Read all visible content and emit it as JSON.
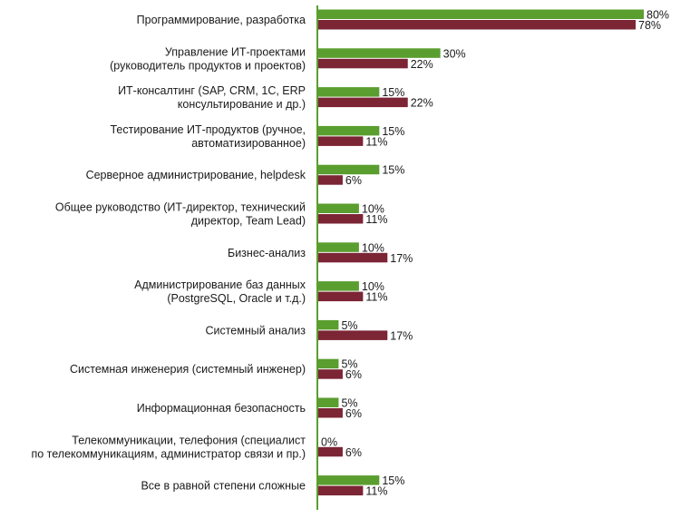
{
  "chart_data": {
    "type": "bar",
    "orientation": "horizontal",
    "title": "",
    "xlabel": "",
    "ylabel": "",
    "xlim": [
      0,
      80
    ],
    "grid": false,
    "legend": "none",
    "categories": [
      [
        "Программирование, разработка"
      ],
      [
        "Управление ИТ-проектами",
        "(руководитель продуктов и проектов)"
      ],
      [
        "ИТ-консалтинг (SAP, CRM, 1С, ERP",
        "консультирование и др.)"
      ],
      [
        "Тестирование ИТ-продуктов (ручное,",
        "автоматизированное)"
      ],
      [
        "Серверное администрирование, helpdesk"
      ],
      [
        "Общее руководство (ИТ-директор, технический",
        "директор, Team Lead)"
      ],
      [
        "Бизнес-анализ"
      ],
      [
        "Администрирование баз данных",
        "(PostgreSQL, Oracle и т.д.)"
      ],
      [
        "Системный анализ"
      ],
      [
        "Системная инженерия (системный инженер)"
      ],
      [
        "Информационная безопасность"
      ],
      [
        "Телекоммуникации, телефония (специалист",
        "по телекоммуникациям, администратор связи и пр.)"
      ],
      [
        "Все в равной степени сложные"
      ]
    ],
    "series": [
      {
        "color": "#5a9e2f",
        "values": [
          80,
          30,
          15,
          15,
          15,
          10,
          10,
          10,
          5,
          5,
          5,
          0,
          15
        ],
        "labels": [
          "80%",
          "30%",
          "15%",
          "15%",
          "15%",
          "10%",
          "10%",
          "10%",
          "5%",
          "5%",
          "5%",
          "0%",
          "15%"
        ]
      },
      {
        "color": "#7b2535",
        "values": [
          78,
          22,
          22,
          11,
          6,
          11,
          17,
          11,
          17,
          6,
          6,
          6,
          11
        ],
        "labels": [
          "78%",
          "22%",
          "22%",
          "11%",
          "6%",
          "11%",
          "17%",
          "11%",
          "17%",
          "6%",
          "6%",
          "6%",
          "11%"
        ]
      }
    ]
  }
}
